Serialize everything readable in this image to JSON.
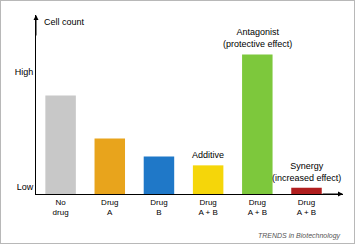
{
  "chart_data": {
    "type": "bar",
    "y_label": "Cell count",
    "categories": [
      "No\ndrug",
      "Drug\nA",
      "Drug\nB",
      "Drug\nA + B",
      "Drug\nA + B",
      "Drug\nA + B"
    ],
    "values": [
      55,
      31,
      21,
      16,
      78,
      3.5
    ],
    "colors": [
      "#c8c8c8",
      "#e8a41c",
      "#1f78c8",
      "#f5d60a",
      "#7dc83c",
      "#b01e1e"
    ],
    "ylim": [
      0,
      100
    ],
    "yticks": [
      {
        "value": 4,
        "label": "Low"
      },
      {
        "value": 68,
        "label": "High"
      }
    ],
    "grid": false,
    "annotations": [
      {
        "text": "Additive",
        "x": 3
      },
      {
        "text": "Antagonist\n(protective effect)",
        "x": 4
      },
      {
        "text": "Synergy\n(increased effect)",
        "x": 5
      }
    ],
    "source": "TRENDS in Biotechnology"
  }
}
